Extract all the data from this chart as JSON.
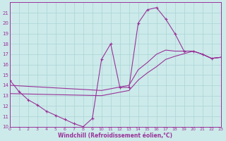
{
  "background_color": "#cceaea",
  "grid_color": "#aad4d4",
  "line_color": "#993399",
  "xlabel": "Windchill (Refroidissement éolien,°C)",
  "xlim": [
    0,
    23
  ],
  "ylim": [
    10,
    22
  ],
  "xticks": [
    0,
    1,
    2,
    3,
    4,
    5,
    6,
    7,
    8,
    9,
    10,
    11,
    12,
    13,
    14,
    15,
    16,
    17,
    18,
    19,
    20,
    21,
    22,
    23
  ],
  "yticks": [
    10,
    11,
    12,
    13,
    14,
    15,
    16,
    17,
    18,
    19,
    20,
    21
  ],
  "series1_x": [
    0,
    1,
    2,
    3,
    4,
    5,
    6,
    7,
    8,
    9,
    10,
    11,
    12,
    13,
    14,
    15,
    16,
    17,
    18,
    19,
    20,
    21,
    22,
    23
  ],
  "series1_y": [
    14.5,
    13.4,
    12.6,
    12.1,
    11.5,
    11.1,
    10.7,
    10.3,
    10.0,
    10.8,
    16.5,
    18.0,
    13.8,
    13.8,
    20.0,
    21.3,
    21.5,
    20.4,
    19.0,
    17.3,
    17.3,
    17.0,
    16.6,
    16.7
  ],
  "series2_x": [
    0,
    10,
    13,
    14,
    15,
    16,
    17,
    18,
    20,
    21,
    22,
    23
  ],
  "series2_y": [
    14.0,
    13.5,
    14.0,
    15.5,
    16.2,
    17.0,
    17.4,
    17.3,
    17.3,
    17.0,
    16.6,
    16.7
  ],
  "series3_x": [
    0,
    10,
    13,
    14,
    15,
    16,
    17,
    18,
    20,
    21,
    22,
    23
  ],
  "series3_y": [
    13.2,
    13.0,
    13.5,
    14.5,
    15.2,
    15.8,
    16.5,
    16.8,
    17.3,
    17.0,
    16.6,
    16.7
  ]
}
